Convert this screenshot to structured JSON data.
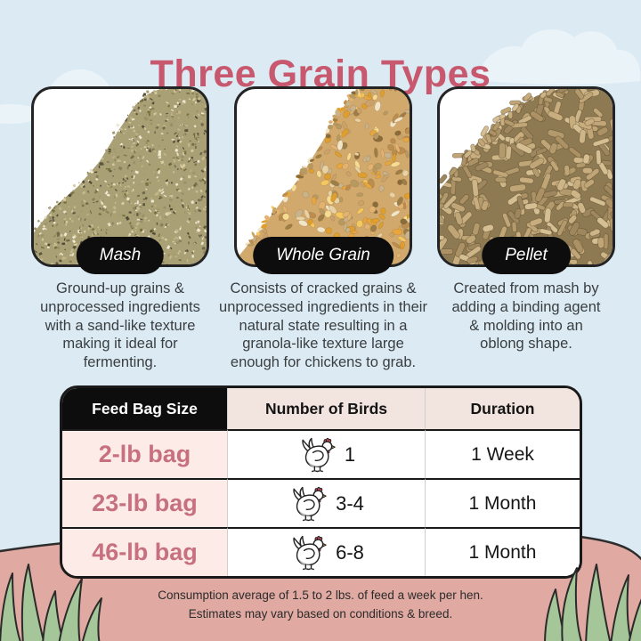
{
  "page": {
    "title": "Three Grain Types"
  },
  "grains": [
    {
      "name": "Mash",
      "photo": "mash-pile-photo",
      "description": "Ground-up grains & unprocessed ingredients with a sand-like texture making it ideal for fermenting."
    },
    {
      "name": "Whole Grain",
      "photo": "whole-grain-pile-photo",
      "description": "Consists of cracked grains & unprocessed ingredients in their natural state resulting in a granola-like texture large enough for chickens to grab."
    },
    {
      "name": "Pellet",
      "photo": "pellet-pile-photo",
      "description": "Created from mash by adding a binding agent & molding into an oblong shape."
    }
  ],
  "table": {
    "headers": [
      "Feed Bag Size",
      "Number of Birds",
      "Duration"
    ],
    "bird_icon": "hen-icon",
    "rows": [
      {
        "size": "2-lb bag",
        "birds": "1",
        "duration": "1 Week"
      },
      {
        "size": "23-lb bag",
        "birds": "3-4",
        "duration": "1 Month"
      },
      {
        "size": "46-lb bag",
        "birds": "6-8",
        "duration": "1 Month"
      }
    ]
  },
  "chart_data": {
    "type": "table",
    "title": "Three Grain Types",
    "columns": [
      "Feed Bag Size",
      "Number of Birds",
      "Duration"
    ],
    "rows": [
      [
        "2-lb bag",
        "1",
        "1 Week"
      ],
      [
        "23-lb bag",
        "3-4",
        "1 Month"
      ],
      [
        "46-lb bag",
        "6-8",
        "1 Month"
      ]
    ]
  },
  "footer": {
    "line1": "Consumption average of 1.5 to 2 lbs. of feed a week per hen.",
    "line2": "Estimates may vary based on conditions & breed."
  },
  "colors": {
    "accent_rose": "#c7586e",
    "bag_text_rose": "#c7707f",
    "header_black": "#0d0d0d",
    "header_pink": "#f2e4df",
    "row_pink": "#fcebe7",
    "ground_pink": "#e0a9a2",
    "grass_green": "#a4c698",
    "sky_blue": "#dcebf3"
  }
}
